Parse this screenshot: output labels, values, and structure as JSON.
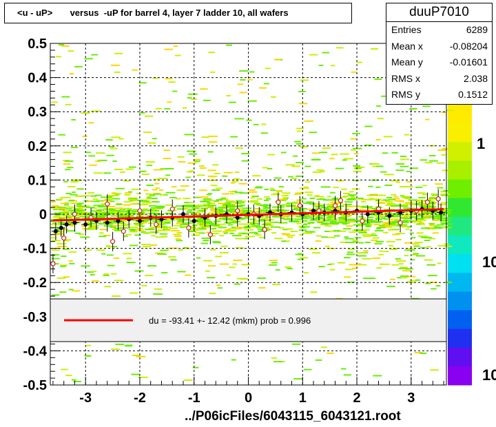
{
  "title": "<u - uP>       versus  -uP for barrel 4, layer 7 ladder 10, all wafers",
  "stats": {
    "name": "duuP7010",
    "rows": [
      {
        "key": "Entries",
        "value": "6289"
      },
      {
        "key": "Mean x",
        "value": "-0.08204"
      },
      {
        "key": "Mean y",
        "value": "-0.01601"
      },
      {
        "key": "RMS x",
        "value": "2.038"
      },
      {
        "key": "RMS y",
        "value": "0.1512"
      }
    ]
  },
  "footer": "../P06icFiles/6043115_6043121.root",
  "colors": {
    "fit_line": "#ff0000",
    "profile_points": "#000000",
    "hist_low": "#c8f000",
    "hist_mid": "#66ee00",
    "hist_high": "#ffd400",
    "legend_bg": "#f0f0f0"
  },
  "chart_data": {
    "type": "scatter",
    "title": "<u - uP>       versus  -uP for barrel 4, layer 7 ladder 10, all wafers",
    "xlim": [
      -3.65,
      3.65
    ],
    "ylim": [
      -0.5,
      0.5
    ],
    "x_ticks": [
      -3,
      -2,
      -1,
      0,
      1,
      2,
      3
    ],
    "x_tick_labels": [
      "-3",
      "-2",
      "-1",
      "0",
      "1",
      "2",
      "3"
    ],
    "y_ticks": [
      -0.5,
      -0.4,
      -0.3,
      -0.2,
      -0.1,
      0,
      0.1,
      0.2,
      0.3,
      0.4,
      0.5
    ],
    "y_tick_labels": [
      "-0.5",
      "-0.4",
      "-0.3",
      "-0.2",
      "-0.1",
      "0",
      "0.1",
      "0.2",
      "0.3",
      "0.4",
      "0.5"
    ],
    "grid": true,
    "legend": {
      "text": "du =  -93.41 +- 12.42 (mkm) prob = 0.996",
      "placement": "bottom"
    },
    "colorbar": {
      "labels": [
        "1",
        "10",
        "10"
      ]
    },
    "fit_line": {
      "x": [
        -3.6,
        3.6
      ],
      "y": [
        -0.0185,
        0.0145
      ]
    },
    "profile": {
      "x": [
        -3.55,
        -3.45,
        -3.35,
        -3.2,
        -3.0,
        -2.8,
        -2.6,
        -2.4,
        -2.2,
        -2.0,
        -1.8,
        -1.6,
        -1.4,
        -1.2,
        -1.0,
        -0.8,
        -0.6,
        -0.4,
        -0.2,
        0.0,
        0.2,
        0.4,
        0.6,
        0.8,
        1.0,
        1.2,
        1.4,
        1.6,
        1.8,
        2.0,
        2.2,
        2.4,
        2.6,
        2.8,
        3.0,
        3.2,
        3.4,
        3.55
      ],
      "y": [
        -0.05,
        -0.04,
        -0.03,
        -0.025,
        -0.03,
        -0.02,
        -0.025,
        -0.02,
        -0.015,
        -0.02,
        -0.01,
        -0.015,
        -0.01,
        0.0,
        -0.02,
        -0.01,
        -0.005,
        0.0,
        -0.01,
        0.0,
        -0.005,
        0.005,
        0.0,
        0.005,
        0.0,
        0.01,
        0.005,
        0.01,
        0.005,
        0.01,
        0.0,
        0.005,
        -0.005,
        0.005,
        0.01,
        0.015,
        0.01,
        0.005
      ]
    },
    "outliers": {
      "x": [
        -3.6,
        -3.4,
        -3.2,
        -2.9,
        -2.6,
        -2.5,
        -2.3,
        -2.0,
        -1.7,
        -1.4,
        -1.1,
        -0.7,
        -0.2,
        0.1,
        0.3,
        0.55,
        0.95,
        1.3,
        1.6,
        1.7,
        2.1,
        2.4,
        2.8,
        3.1,
        3.3,
        3.5
      ],
      "y": [
        -0.145,
        -0.07,
        0.0,
        -0.01,
        0.03,
        -0.08,
        -0.05,
        0.01,
        -0.03,
        0.015,
        -0.04,
        -0.06,
        0.01,
        0.0,
        -0.045,
        0.035,
        0.025,
        0.01,
        0.025,
        0.04,
        -0.02,
        0.015,
        -0.025,
        0.01,
        0.035,
        0.045
      ]
    }
  }
}
